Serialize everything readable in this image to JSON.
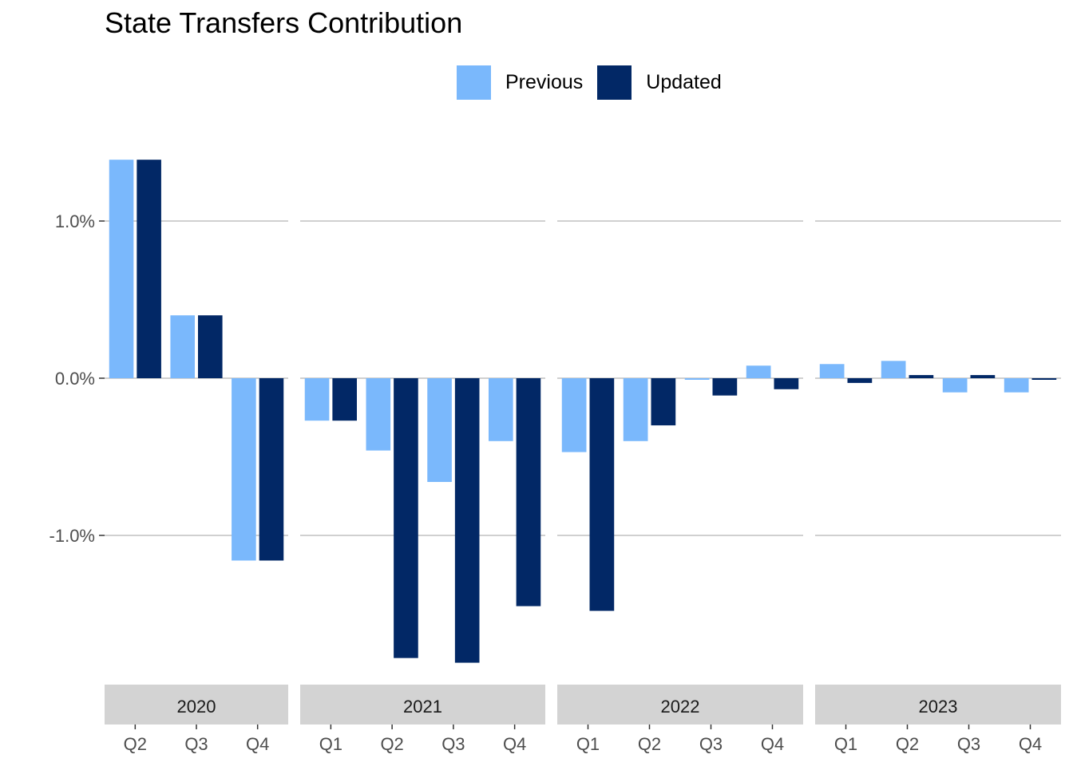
{
  "chart_data": {
    "type": "bar",
    "title": "State Transfers Contribution",
    "xlabel": "",
    "ylabel": "",
    "ylim": [
      -1.8,
      1.4
    ],
    "yticks": [
      -1.0,
      0.0,
      1.0
    ],
    "ytick_labels": [
      "-1.0%",
      "0.0%",
      "1.0%"
    ],
    "grid": true,
    "legend_position": "top",
    "series": [
      {
        "name": "Previous",
        "color": "#7ab8fc"
      },
      {
        "name": "Updated",
        "color": "#022866"
      }
    ],
    "panels": [
      {
        "label": "2020",
        "categories": [
          "Q2",
          "Q3",
          "Q4"
        ],
        "values": {
          "Previous": [
            1.39,
            0.4,
            -1.16
          ],
          "Updated": [
            1.39,
            0.4,
            -1.16
          ]
        }
      },
      {
        "label": "2021",
        "categories": [
          "Q1",
          "Q2",
          "Q3",
          "Q4"
        ],
        "values": {
          "Previous": [
            -0.27,
            -0.46,
            -0.66,
            -0.4
          ],
          "Updated": [
            -0.27,
            -1.78,
            -1.81,
            -1.45
          ]
        }
      },
      {
        "label": "2022",
        "categories": [
          "Q1",
          "Q2",
          "Q3",
          "Q4"
        ],
        "values": {
          "Previous": [
            -0.47,
            -0.4,
            -0.01,
            0.08
          ],
          "Updated": [
            -1.48,
            -0.3,
            -0.11,
            -0.07
          ]
        }
      },
      {
        "label": "2023",
        "categories": [
          "Q1",
          "Q2",
          "Q3",
          "Q4"
        ],
        "values": {
          "Previous": [
            0.09,
            0.11,
            -0.09,
            -0.09
          ],
          "Updated": [
            -0.03,
            0.02,
            0.02,
            -0.004
          ]
        }
      }
    ]
  }
}
